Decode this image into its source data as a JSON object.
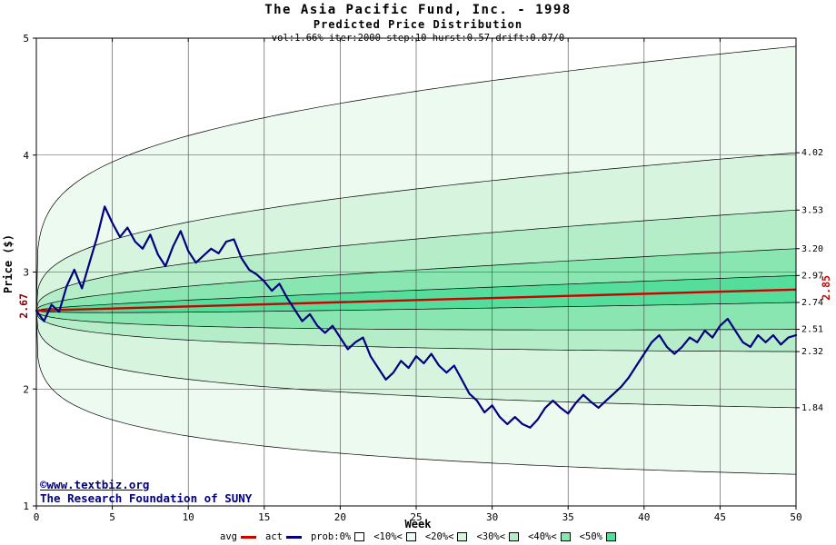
{
  "header": {
    "title": "The Asia Pacific Fund, Inc. - 1998",
    "subtitle": "Predicted Price Distribution",
    "params": "vol:1.66% iter:2000 step:10 hurst:0.57 drift:0.07/0"
  },
  "watermark": {
    "line1": "©www.textbiz.org",
    "line2": "The Research Foundation of SUNY"
  },
  "chart_data": {
    "type": "area",
    "title": "The Asia Pacific Fund, Inc. - 1998",
    "xlabel": "Week",
    "ylabel": "Price ($)",
    "xlim": [
      0,
      50
    ],
    "ylim": [
      1,
      5
    ],
    "x_ticks": [
      0,
      5,
      10,
      15,
      20,
      25,
      30,
      35,
      40,
      45,
      50
    ],
    "y_ticks": [
      1,
      2,
      3,
      4,
      5
    ],
    "grid": true,
    "start_label": "2.67",
    "end_label": "2.85",
    "avg": {
      "name": "avg",
      "color": "#cc0000",
      "start": 2.67,
      "end": 2.85
    },
    "act": {
      "name": "act",
      "color": "#000080",
      "x_start": 0,
      "step": 0.5,
      "values": [
        2.67,
        2.58,
        2.72,
        2.66,
        2.88,
        3.02,
        2.86,
        3.08,
        3.3,
        3.56,
        3.42,
        3.3,
        3.38,
        3.26,
        3.2,
        3.32,
        3.15,
        3.05,
        3.22,
        3.35,
        3.18,
        3.08,
        3.14,
        3.2,
        3.16,
        3.26,
        3.28,
        3.12,
        3.02,
        2.98,
        2.92,
        2.84,
        2.9,
        2.78,
        2.68,
        2.58,
        2.64,
        2.54,
        2.48,
        2.54,
        2.44,
        2.34,
        2.4,
        2.44,
        2.28,
        2.18,
        2.08,
        2.14,
        2.24,
        2.18,
        2.28,
        2.22,
        2.3,
        2.2,
        2.14,
        2.2,
        2.08,
        1.96,
        1.9,
        1.8,
        1.86,
        1.76,
        1.7,
        1.76,
        1.7,
        1.67,
        1.74,
        1.84,
        1.9,
        1.84,
        1.79,
        1.88,
        1.95,
        1.89,
        1.84,
        1.9,
        1.96,
        2.02,
        2.1,
        2.2,
        2.3,
        2.4,
        2.46,
        2.36,
        2.3,
        2.36,
        2.44,
        2.4,
        2.5,
        2.44,
        2.54,
        2.6,
        2.5,
        2.4,
        2.36,
        2.46,
        2.4,
        2.46,
        2.38,
        2.44,
        2.46
      ]
    },
    "boundaries": [
      {
        "end": 4.93,
        "exp": 0.22,
        "label": ""
      },
      {
        "end": 4.02,
        "exp": 0.3,
        "label": "4.02"
      },
      {
        "end": 3.53,
        "exp": 0.38,
        "label": "3.53"
      },
      {
        "end": 3.2,
        "exp": 0.44,
        "label": "3.20"
      },
      {
        "end": 2.97,
        "exp": 0.5,
        "label": "2.97"
      },
      {
        "end": 2.74,
        "exp": 0.5,
        "label": "2.74"
      },
      {
        "end": 2.51,
        "exp": 0.44,
        "label": "2.51"
      },
      {
        "end": 2.32,
        "exp": 0.38,
        "label": "2.32"
      },
      {
        "end": 1.84,
        "exp": 0.3,
        "label": "1.84"
      },
      {
        "end": 1.27,
        "exp": 0.22,
        "label": ""
      }
    ],
    "band_colors": [
      "#edfaf0",
      "#d6f4de",
      "#b4edc8",
      "#8ae6b1",
      "#55dd9b",
      "#8ae6b1",
      "#b4edc8",
      "#d6f4de",
      "#edfaf0"
    ]
  },
  "legend": {
    "items": [
      {
        "label": "avg",
        "color": "#cc0000",
        "type": "line"
      },
      {
        "label": "act",
        "color": "#000080",
        "type": "line"
      },
      {
        "label": "prob:0%",
        "color": "#ffffff",
        "type": "box"
      },
      {
        "label": "<10%<",
        "color": "#edfaf0",
        "type": "box"
      },
      {
        "label": "<20%<",
        "color": "#d6f4de",
        "type": "box"
      },
      {
        "label": "<30%<",
        "color": "#b4edc8",
        "type": "box"
      },
      {
        "label": "<40%<",
        "color": "#8ae6b1",
        "type": "box"
      },
      {
        "label": "<50%",
        "color": "#55dd9b",
        "type": "box"
      }
    ]
  }
}
